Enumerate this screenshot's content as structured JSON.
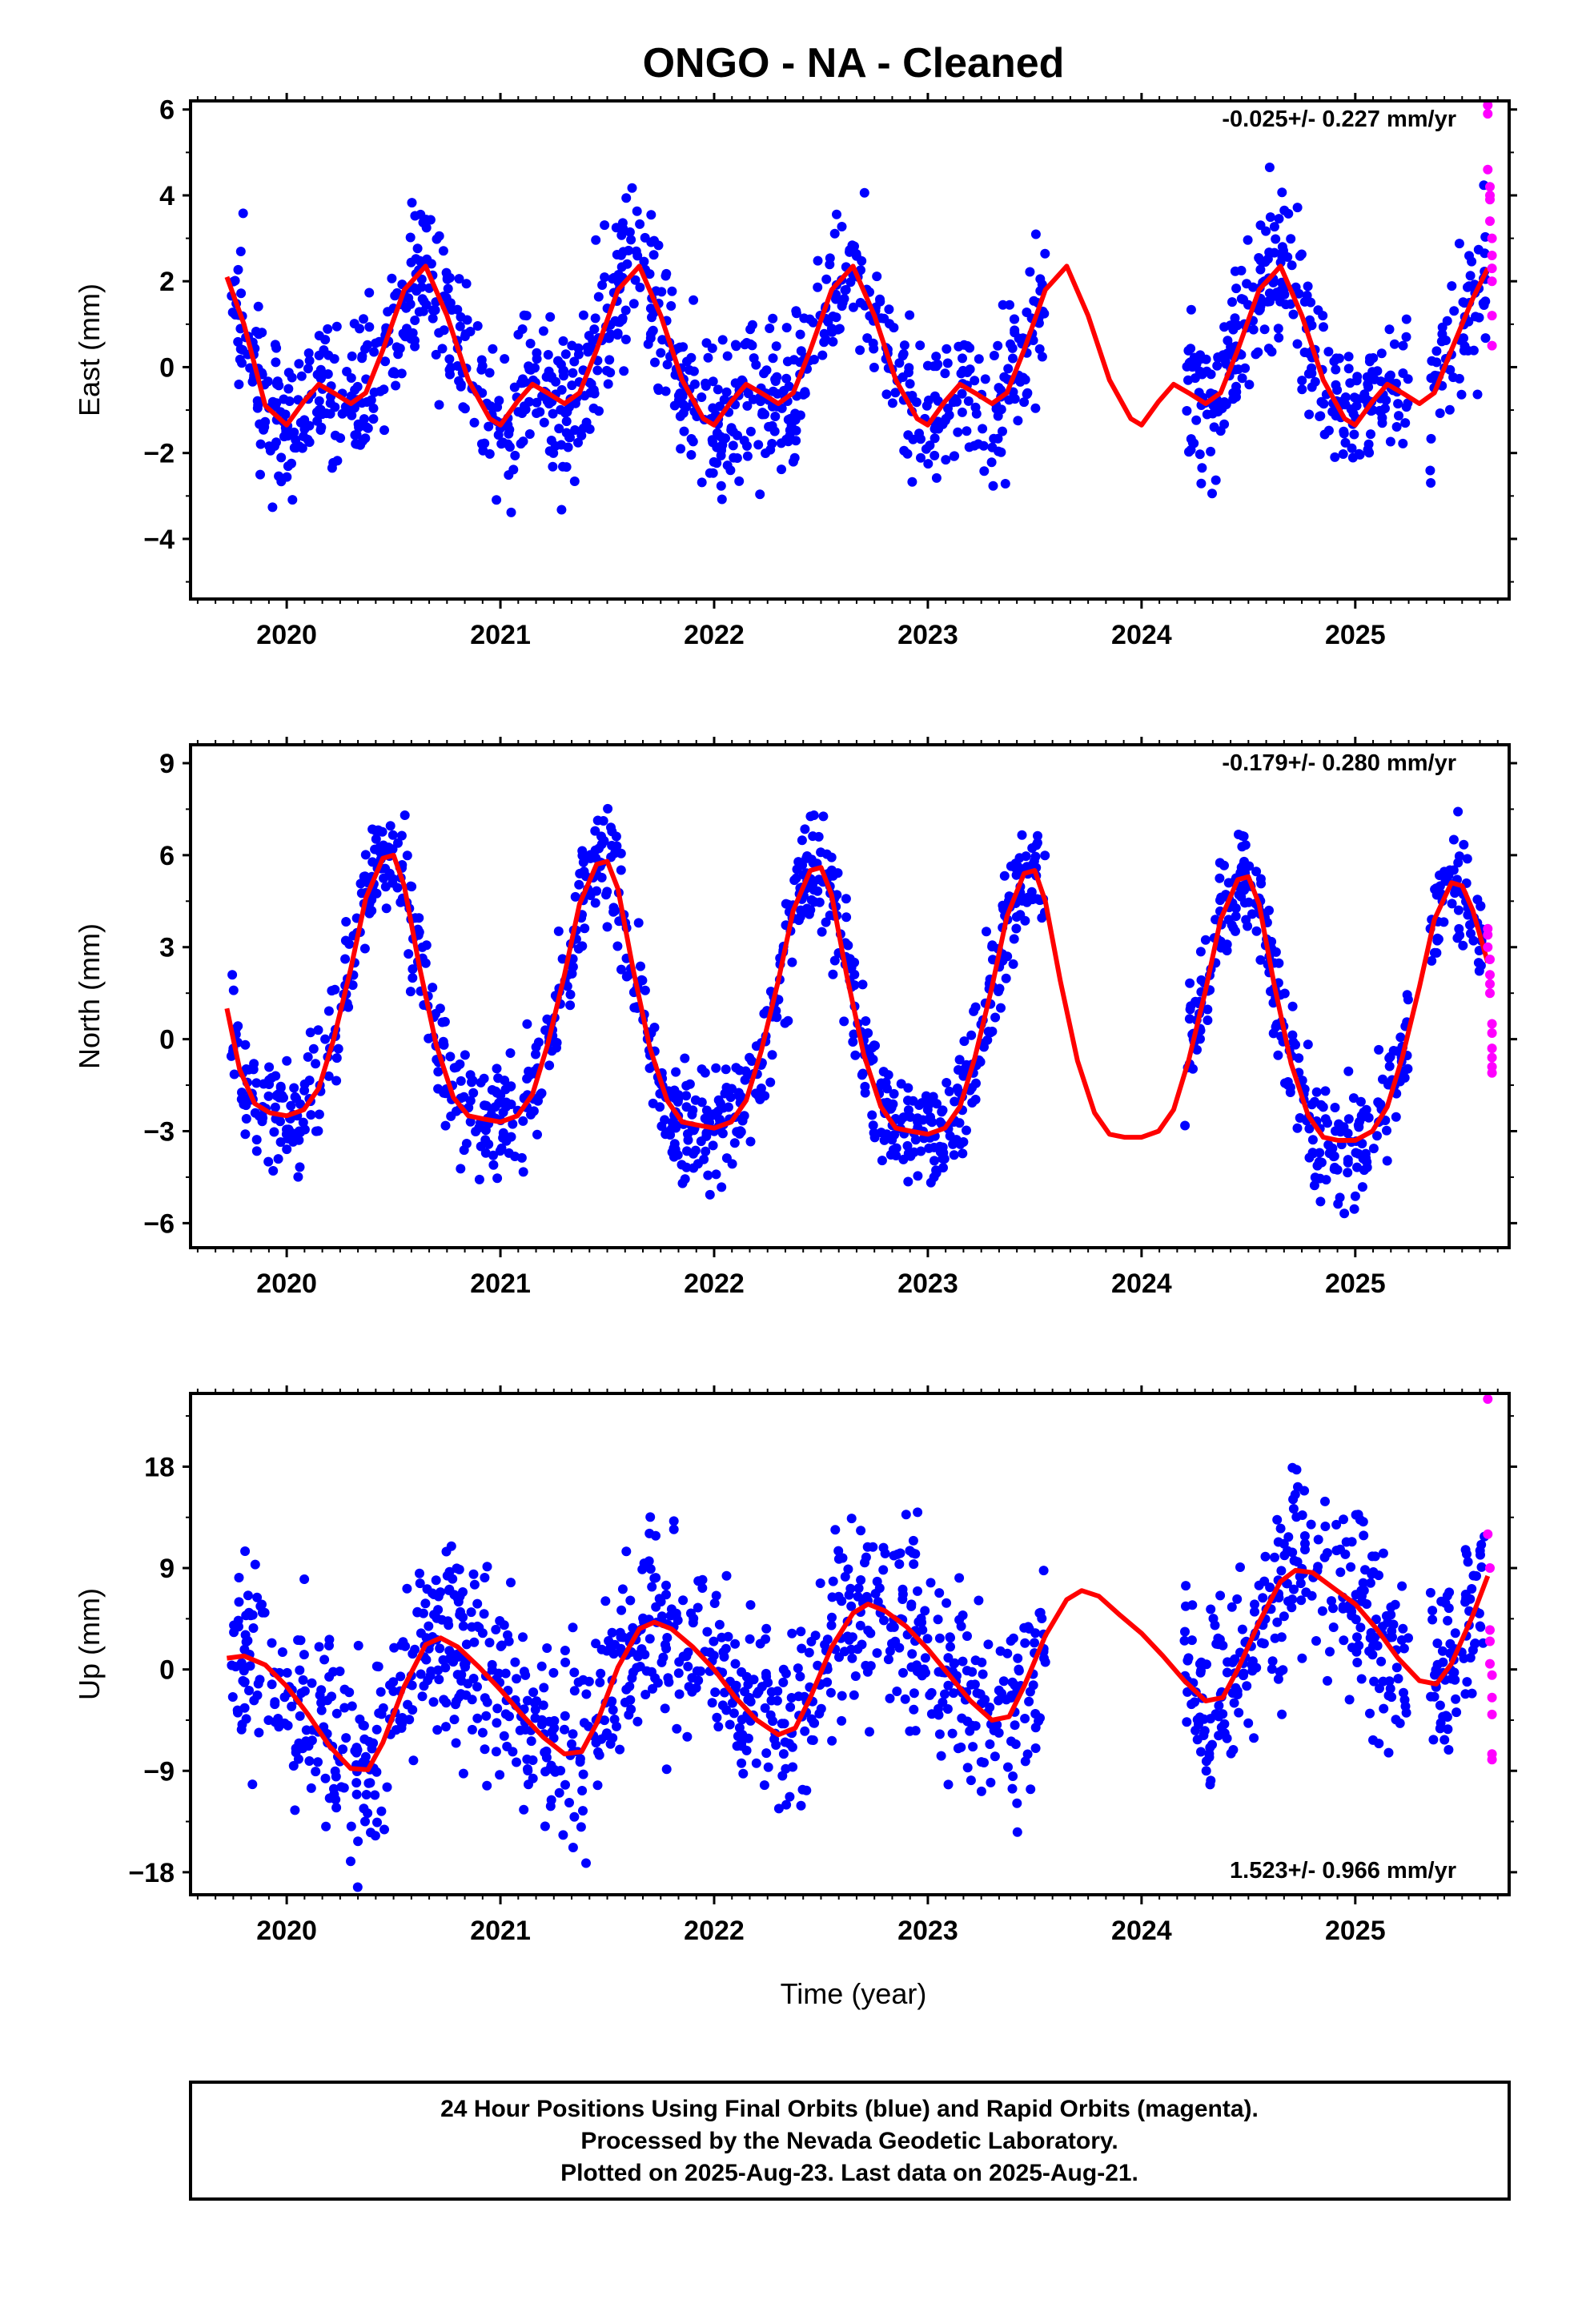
{
  "figure": {
    "title": "ONGO  - NA - Cleaned",
    "xlabel": "Time (year)",
    "footer": [
      "24 Hour Positions Using Final Orbits (blue) and Rapid Orbits (magenta).",
      "Processed by the Nevada Geodetic Laboratory.",
      "Plotted on 2025-Aug-23. Last data on 2025-Aug-21."
    ]
  },
  "colors": {
    "final_orbits": "#0000ff",
    "rapid_orbits": "#ff00ff",
    "model_fit": "#ff0000",
    "frame": "#000000"
  },
  "chart_data": [
    {
      "type": "scatter",
      "component": "east",
      "ylabel": "East (mm)",
      "rate_label": "-0.025+/- 0.227 mm/yr",
      "xlim": [
        2019.55,
        2025.72
      ],
      "ylim": [
        -5.4,
        6.2
      ],
      "yticks": [
        6,
        4,
        2,
        0,
        -2,
        -4
      ],
      "xticks": [
        2020,
        2021,
        2022,
        2023,
        2024,
        2025
      ],
      "fit": {
        "name": "model fit",
        "x": [
          2019.72,
          2019.8,
          2019.9,
          2020.0,
          2020.08,
          2020.15,
          2020.22,
          2020.3,
          2020.37,
          2020.45,
          2020.55,
          2020.65,
          2020.75,
          2020.85,
          2020.95,
          2021.0,
          2021.08,
          2021.15,
          2021.22,
          2021.3,
          2021.37,
          2021.45,
          2021.55,
          2021.65,
          2021.75,
          2021.85,
          2021.95,
          2022.0,
          2022.08,
          2022.15,
          2022.22,
          2022.3,
          2022.37,
          2022.45,
          2022.55,
          2022.65,
          2022.75,
          2022.85,
          2022.95,
          2023.0,
          2023.08,
          2023.15,
          2023.22,
          2023.3,
          2023.37,
          2023.45,
          2023.55,
          2023.65,
          2023.75,
          2023.85,
          2023.95,
          2024.0,
          2024.08,
          2024.15,
          2024.22,
          2024.3,
          2024.37,
          2024.45,
          2024.55,
          2024.65,
          2024.75,
          2024.85,
          2024.95,
          2025.0,
          2025.08,
          2025.15,
          2025.22,
          2025.3,
          2025.37,
          2025.45,
          2025.55,
          2025.62
        ],
        "y": [
          2.1,
          1.0,
          -0.9,
          -1.35,
          -0.8,
          -0.4,
          -0.6,
          -0.85,
          -0.6,
          0.4,
          1.8,
          2.35,
          1.2,
          -0.3,
          -1.2,
          -1.35,
          -0.8,
          -0.4,
          -0.6,
          -0.85,
          -0.6,
          0.4,
          1.8,
          2.35,
          1.2,
          -0.3,
          -1.2,
          -1.35,
          -0.8,
          -0.4,
          -0.6,
          -0.85,
          -0.6,
          0.4,
          1.8,
          2.35,
          1.2,
          -0.3,
          -1.2,
          -1.35,
          -0.8,
          -0.4,
          -0.6,
          -0.85,
          -0.6,
          0.4,
          1.8,
          2.35,
          1.2,
          -0.3,
          -1.2,
          -1.35,
          -0.8,
          -0.4,
          -0.6,
          -0.85,
          -0.6,
          0.4,
          1.8,
          2.35,
          1.2,
          -0.3,
          -1.2,
          -1.35,
          -0.8,
          -0.4,
          -0.6,
          -0.85,
          -0.6,
          0.4,
          1.6,
          2.3
        ]
      },
      "rapid": {
        "x": [
          2025.62,
          2025.62,
          2025.62,
          2025.63,
          2025.63,
          2025.63,
          2025.63,
          2025.64,
          2025.64,
          2025.64,
          2025.64,
          2025.64,
          2025.64
        ],
        "y": [
          6.1,
          5.9,
          4.6,
          4.2,
          4.0,
          3.9,
          3.4,
          3.0,
          2.6,
          2.3,
          2.0,
          1.2,
          0.5
        ]
      }
    },
    {
      "type": "scatter",
      "component": "north",
      "ylabel": "North (mm)",
      "rate_label": "-0.179+/- 0.280 mm/yr",
      "xlim": [
        2019.55,
        2025.72
      ],
      "ylim": [
        -6.8,
        9.6
      ],
      "yticks": [
        9,
        6,
        3,
        0,
        -3,
        -6
      ],
      "xticks": [
        2020,
        2021,
        2022,
        2023,
        2024,
        2025
      ],
      "fit": {
        "name": "model fit",
        "x": [
          2019.72,
          2019.78,
          2019.85,
          2019.92,
          2020.0,
          2020.08,
          2020.15,
          2020.22,
          2020.3,
          2020.37,
          2020.45,
          2020.5,
          2020.55,
          2020.62,
          2020.7,
          2020.78,
          2020.85,
          2020.92,
          2021.0,
          2021.08,
          2021.15,
          2021.22,
          2021.3,
          2021.37,
          2021.45,
          2021.5,
          2021.55,
          2021.62,
          2021.7,
          2021.78,
          2021.85,
          2021.92,
          2022.0,
          2022.08,
          2022.15,
          2022.22,
          2022.3,
          2022.37,
          2022.45,
          2022.5,
          2022.55,
          2022.62,
          2022.7,
          2022.78,
          2022.85,
          2022.92,
          2023.0,
          2023.08,
          2023.15,
          2023.22,
          2023.3,
          2023.37,
          2023.45,
          2023.5,
          2023.55,
          2023.62,
          2023.7,
          2023.78,
          2023.85,
          2023.92,
          2024.0,
          2024.08,
          2024.15,
          2024.22,
          2024.3,
          2024.37,
          2024.45,
          2024.5,
          2024.55,
          2024.62,
          2024.7,
          2024.78,
          2024.85,
          2024.92,
          2025.0,
          2025.08,
          2025.15,
          2025.22,
          2025.3,
          2025.37,
          2025.45,
          2025.5,
          2025.55,
          2025.62
        ],
        "y": [
          1.0,
          -1.0,
          -2.1,
          -2.4,
          -2.5,
          -2.3,
          -1.6,
          0.0,
          2.3,
          4.6,
          5.9,
          6.0,
          5.0,
          2.4,
          -0.2,
          -1.9,
          -2.5,
          -2.6,
          -2.7,
          -2.5,
          -1.8,
          -0.2,
          2.1,
          4.4,
          5.7,
          5.8,
          4.9,
          2.3,
          -0.3,
          -2.0,
          -2.7,
          -2.8,
          -2.9,
          -2.7,
          -2.0,
          -0.4,
          1.9,
          4.2,
          5.5,
          5.6,
          4.7,
          2.1,
          -0.5,
          -2.2,
          -2.9,
          -3.0,
          -3.1,
          -2.9,
          -2.2,
          -0.6,
          1.7,
          4.0,
          5.4,
          5.5,
          4.5,
          1.9,
          -0.7,
          -2.4,
          -3.1,
          -3.2,
          -3.2,
          -3.0,
          -2.3,
          -0.7,
          1.6,
          3.9,
          5.2,
          5.3,
          4.4,
          1.8,
          -0.8,
          -2.5,
          -3.2,
          -3.3,
          -3.3,
          -3.0,
          -2.2,
          -0.6,
          1.7,
          3.9,
          5.1,
          5.0,
          4.2,
          2.5
        ]
      },
      "rapid": {
        "x": [
          2025.62,
          2025.62,
          2025.62,
          2025.63,
          2025.63,
          2025.63,
          2025.63,
          2025.64,
          2025.64,
          2025.64,
          2025.64,
          2025.64,
          2025.64
        ],
        "y": [
          3.6,
          3.4,
          3.0,
          2.6,
          2.1,
          1.8,
          1.5,
          0.5,
          0.2,
          -0.3,
          -0.6,
          -0.9,
          -1.1
        ]
      }
    },
    {
      "type": "scatter",
      "component": "up",
      "ylabel": "Up (mm)",
      "rate_label": "1.523+/- 0.966 mm/yr",
      "xlim": [
        2019.55,
        2025.72
      ],
      "ylim": [
        -20,
        24.5
      ],
      "yticks": [
        18,
        9,
        0,
        -9,
        -18
      ],
      "xticks": [
        2020,
        2021,
        2022,
        2023,
        2024,
        2025
      ],
      "fit": {
        "name": "model fit",
        "x": [
          2019.72,
          2019.8,
          2019.9,
          2020.0,
          2020.1,
          2020.2,
          2020.3,
          2020.38,
          2020.45,
          2020.55,
          2020.65,
          2020.72,
          2020.8,
          2020.9,
          2021.0,
          2021.1,
          2021.2,
          2021.3,
          2021.38,
          2021.45,
          2021.55,
          2021.65,
          2021.72,
          2021.8,
          2021.9,
          2022.0,
          2022.1,
          2022.2,
          2022.3,
          2022.38,
          2022.45,
          2022.55,
          2022.65,
          2022.72,
          2022.8,
          2022.9,
          2023.0,
          2023.1,
          2023.2,
          2023.3,
          2023.38,
          2023.45,
          2023.55,
          2023.65,
          2023.72,
          2023.8,
          2023.9,
          2024.0,
          2024.1,
          2024.2,
          2024.3,
          2024.38,
          2024.45,
          2024.55,
          2024.65,
          2024.72,
          2024.8,
          2024.9,
          2025.0,
          2025.1,
          2025.2,
          2025.3,
          2025.38,
          2025.45,
          2025.55,
          2025.62
        ],
        "y": [
          1.0,
          1.2,
          0.4,
          -1.5,
          -4.0,
          -6.8,
          -8.8,
          -8.9,
          -6.5,
          -1.5,
          2.2,
          2.8,
          2.0,
          0.2,
          -1.8,
          -4.0,
          -6.0,
          -7.5,
          -7.3,
          -4.8,
          0.2,
          3.6,
          4.2,
          3.6,
          2.0,
          0.0,
          -2.5,
          -4.5,
          -5.8,
          -5.2,
          -2.5,
          2.0,
          5.0,
          5.8,
          5.2,
          3.8,
          1.8,
          -0.5,
          -2.8,
          -4.5,
          -4.2,
          -1.5,
          3.0,
          6.2,
          7.0,
          6.5,
          4.8,
          3.2,
          1.2,
          -1.0,
          -2.8,
          -2.5,
          0.0,
          4.2,
          7.8,
          8.8,
          8.6,
          7.2,
          5.8,
          3.6,
          1.0,
          -1.0,
          -1.3,
          0.5,
          4.8,
          8.3
        ]
      },
      "rapid": {
        "x": [
          2025.62,
          2025.62,
          2025.63,
          2025.63,
          2025.63,
          2025.63,
          2025.64,
          2025.64,
          2025.64,
          2025.64,
          2025.64
        ],
        "y": [
          24.0,
          12.0,
          9.0,
          3.5,
          2.5,
          0.5,
          -0.5,
          -2.5,
          -4.0,
          -7.5,
          -8.0
        ]
      }
    }
  ]
}
